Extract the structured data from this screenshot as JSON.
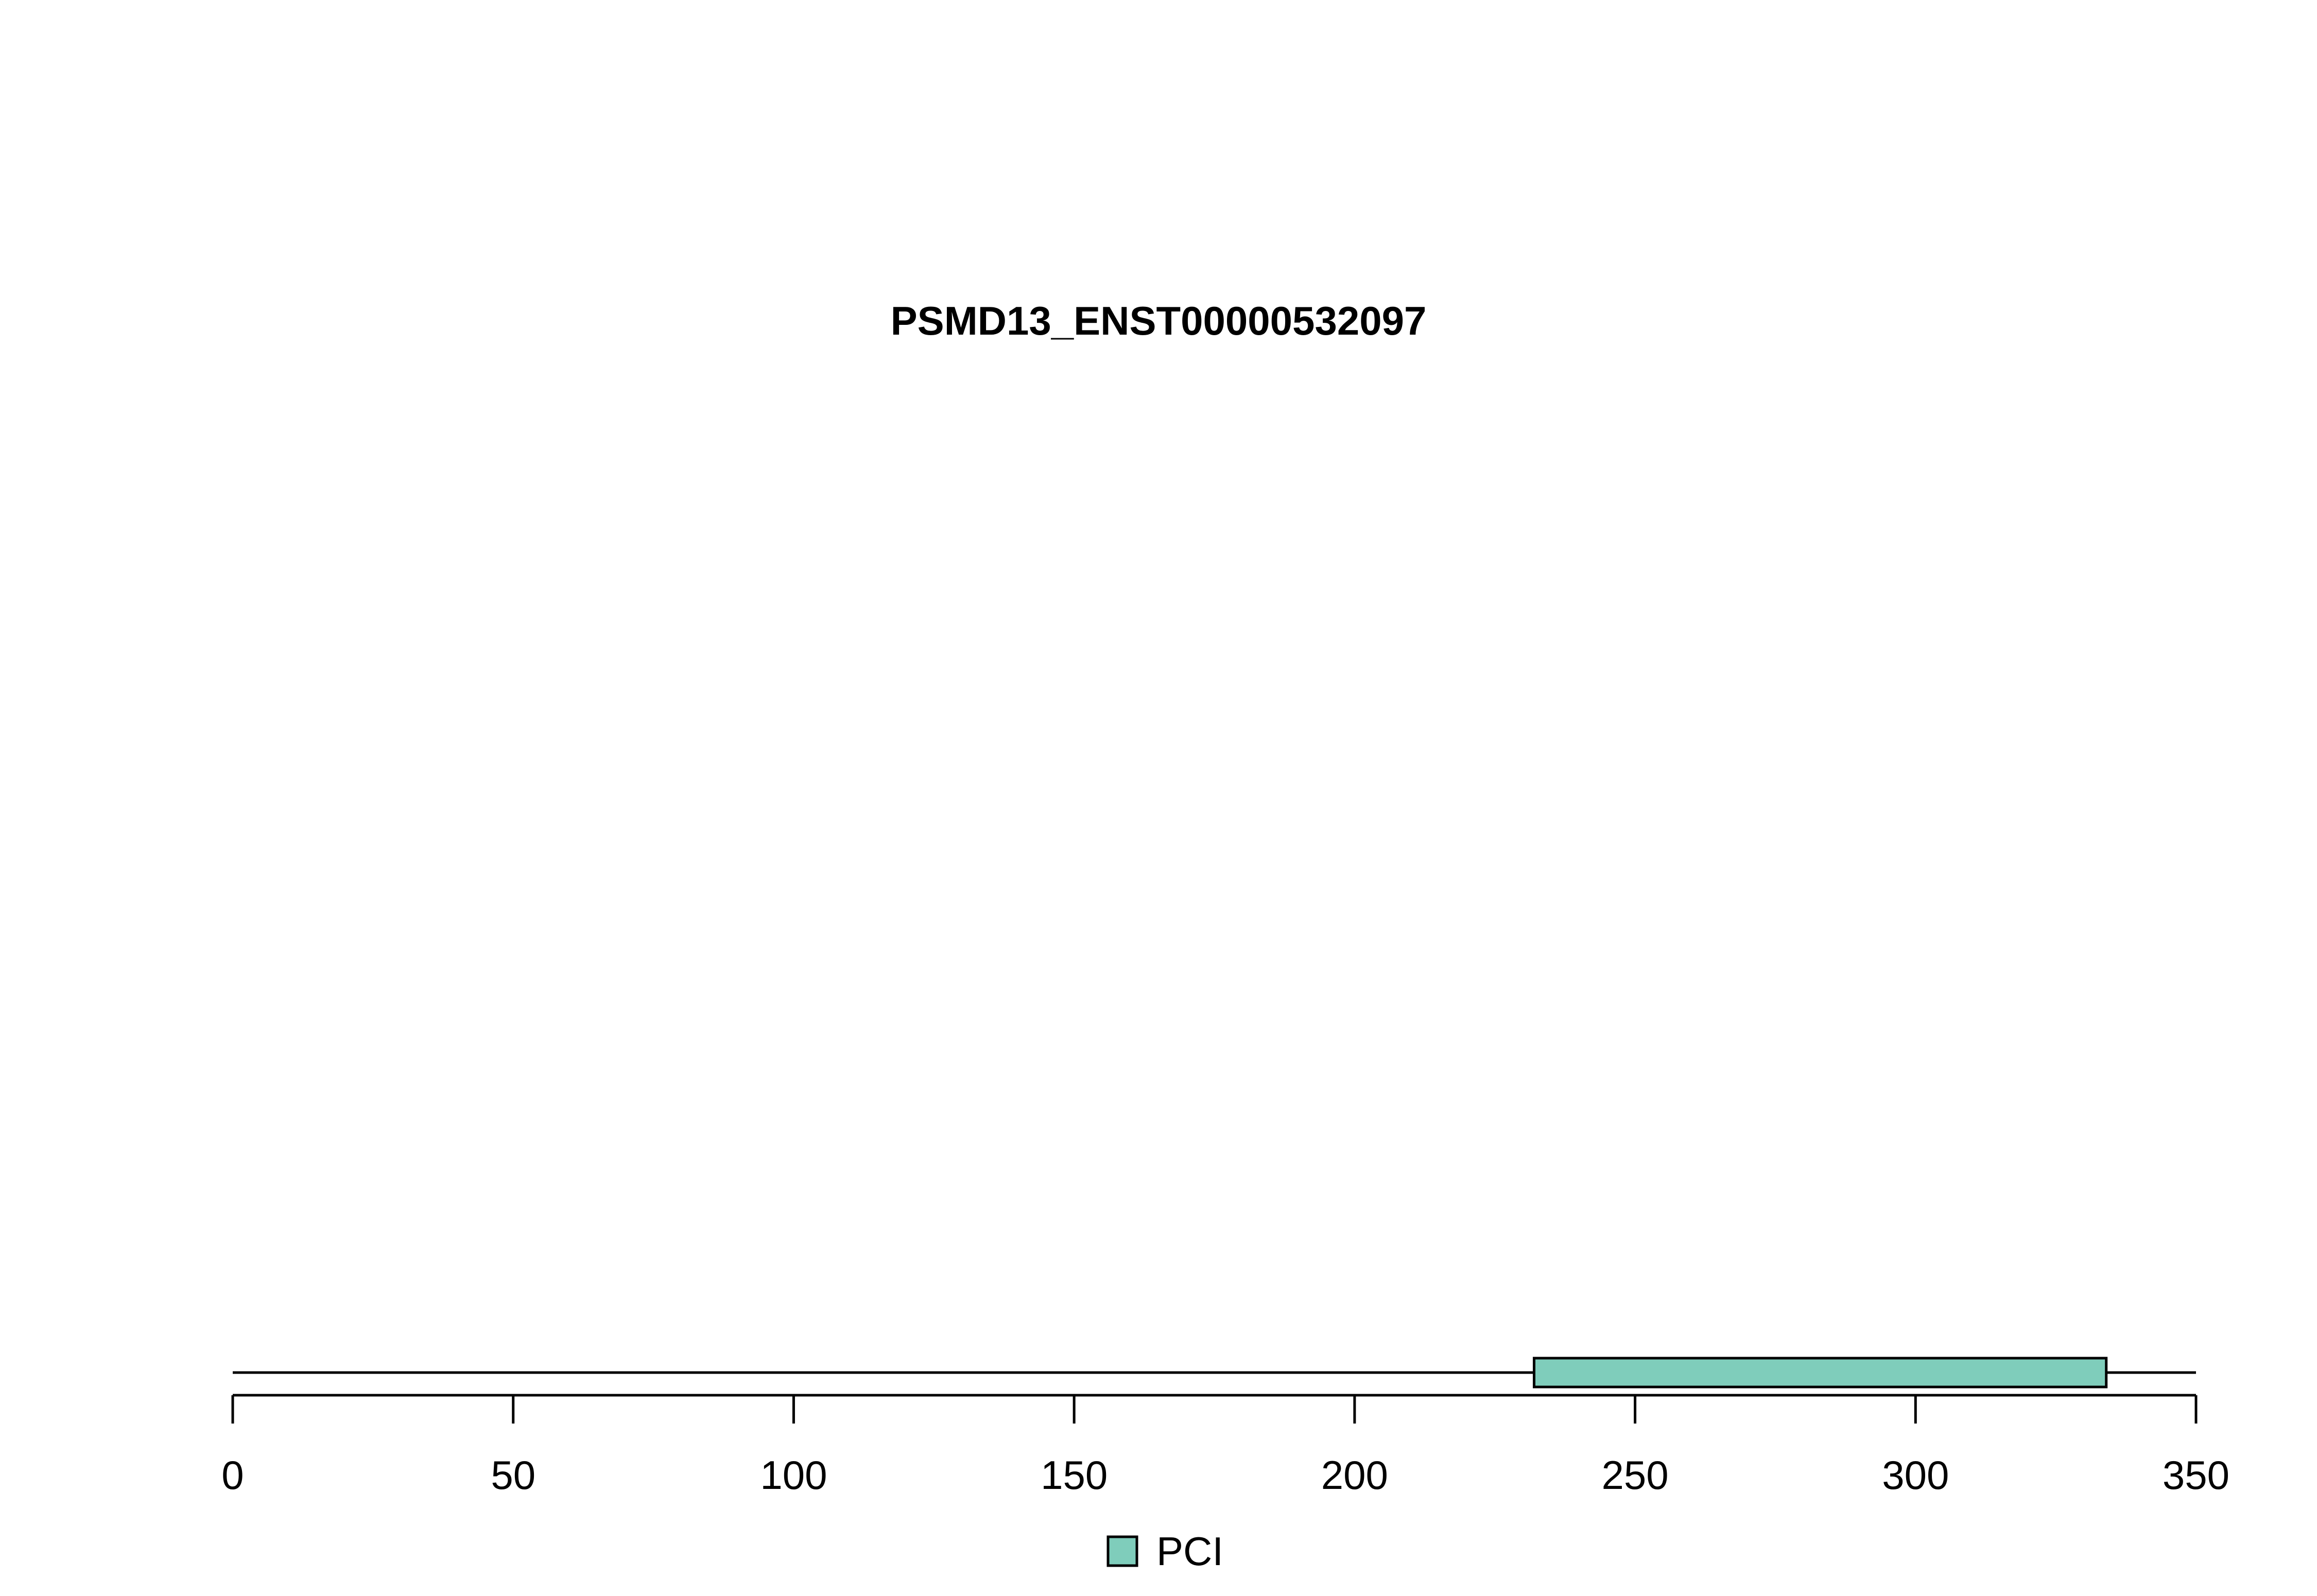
{
  "chart_data": {
    "type": "bar",
    "title": "PSMD13_ENST00000532097",
    "xlabel": "",
    "ylabel": "",
    "xlim": [
      0,
      350
    ],
    "protein_length": 350,
    "x_ticks": [
      0,
      50,
      100,
      150,
      200,
      250,
      300,
      350
    ],
    "x_tick_labels": [
      "0",
      "50",
      "100",
      "150",
      "200",
      "250",
      "300",
      "350"
    ],
    "domains": [
      {
        "name": "PCI",
        "start": 232,
        "end": 334,
        "color": "#7fcdbb"
      }
    ],
    "legend": {
      "position": "bottom-center",
      "entries": [
        {
          "label": "PCI",
          "color": "#7fcdbb"
        }
      ]
    },
    "grid": false
  }
}
